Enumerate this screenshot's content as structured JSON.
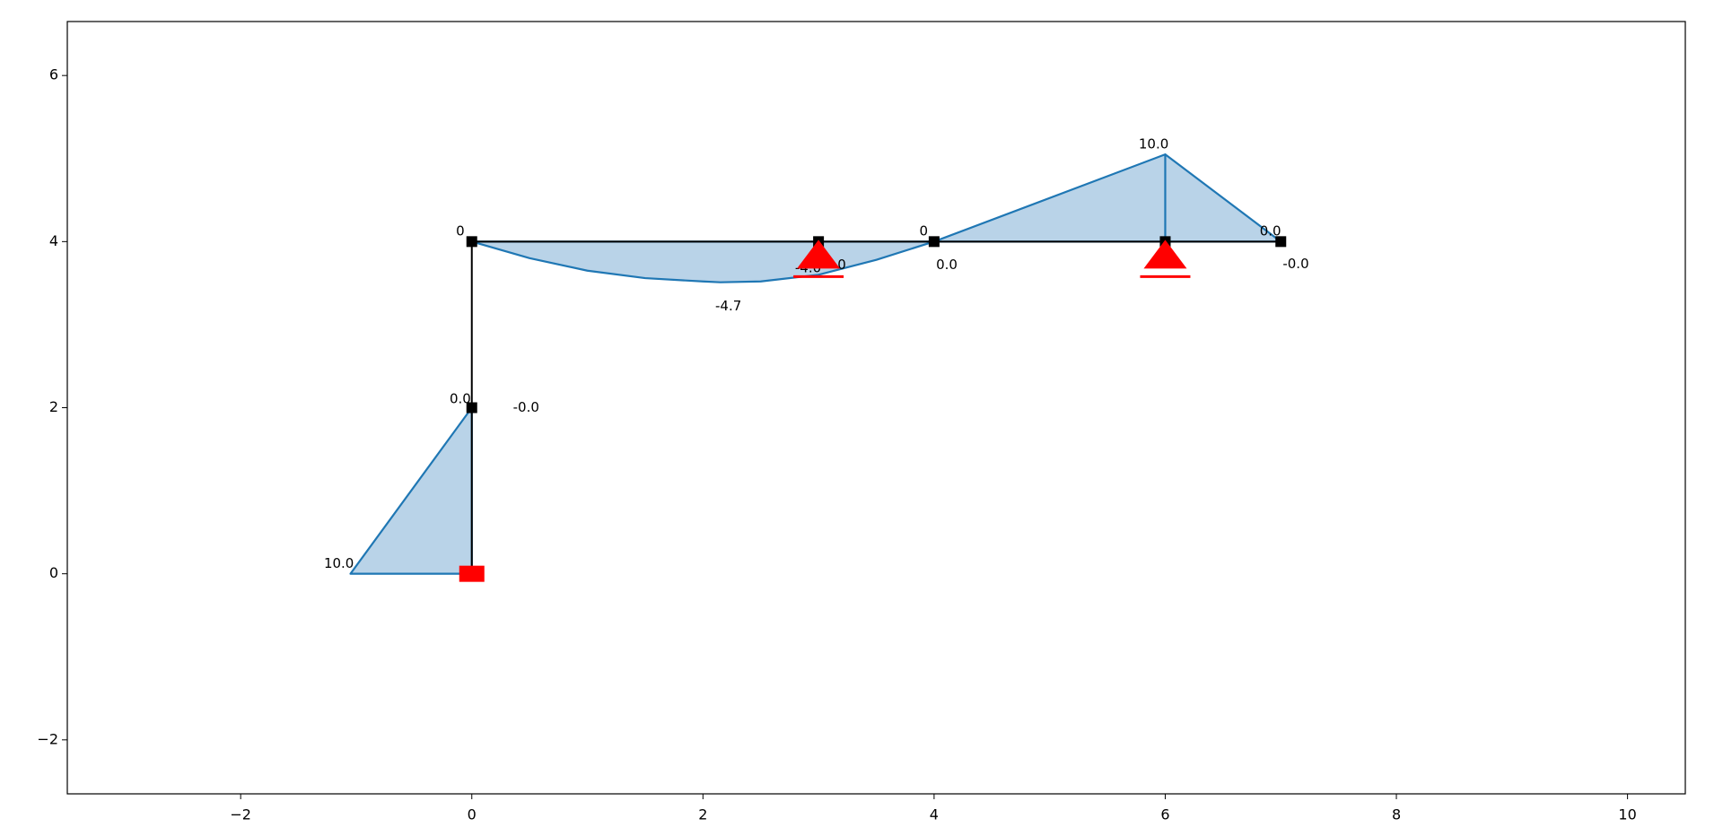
{
  "chart_data": {
    "type": "structure",
    "xlim": [
      -3.5,
      10.5
    ],
    "ylim": [
      -2.65,
      6.65
    ],
    "xticks": [
      {
        "value": -2,
        "label": "−2"
      },
      0,
      2,
      4,
      6,
      8,
      10
    ],
    "yticks": [
      {
        "value": -2,
        "label": "−2"
      },
      0,
      2,
      4,
      6
    ],
    "element_color": "#000000",
    "diagram_color": "#1f77b4",
    "diagram_fill": "#b9d3e8",
    "support_color": "#ff0000",
    "nodes": [
      [
        0,
        0
      ],
      [
        0,
        2
      ],
      [
        0,
        4
      ],
      [
        3,
        4
      ],
      [
        4,
        4
      ],
      [
        6,
        4
      ],
      [
        7,
        4
      ]
    ],
    "elements": [
      [
        0,
        1
      ],
      [
        1,
        2
      ],
      [
        2,
        3
      ],
      [
        3,
        4
      ],
      [
        4,
        5
      ],
      [
        5,
        6
      ]
    ],
    "supports": [
      {
        "kind": "fixed",
        "node": 0
      },
      {
        "kind": "hinged",
        "node": 3
      },
      {
        "kind": "hinged",
        "node": 5
      }
    ],
    "diagram": [
      {
        "x": [
          0,
          -1.05,
          0
        ],
        "y": [
          0,
          0,
          2
        ]
      },
      {
        "x": [
          0,
          0.5,
          1,
          1.5,
          2,
          2.15,
          2.5,
          3,
          3.5,
          4
        ],
        "y": [
          4,
          3.8,
          3.65,
          3.56,
          3.52,
          3.51,
          3.52,
          3.6,
          3.78,
          4
        ]
      },
      {
        "x": [
          4,
          6,
          6,
          6,
          7
        ],
        "y": [
          4,
          5.05,
          4,
          5.05,
          4
        ]
      }
    ],
    "annotations": [
      {
        "text": "10.0",
        "x": -1.15,
        "y": 0.12
      },
      {
        "text": "0.0",
        "x": -0.1,
        "y": 2.1
      },
      {
        "text": "-0.0",
        "x": 0.47,
        "y": 2.0
      },
      {
        "text": "0",
        "x": -0.1,
        "y": 4.12
      },
      {
        "text": "-4.7",
        "x": 2.22,
        "y": 3.22
      },
      {
        "text": "-4.0",
        "x": 2.91,
        "y": 3.68
      },
      {
        "text": "-0",
        "x": 3.18,
        "y": 3.72
      },
      {
        "text": "0",
        "x": 3.91,
        "y": 4.12
      },
      {
        "text": "0.0",
        "x": 4.11,
        "y": 3.72
      },
      {
        "text": "10.0",
        "x": 5.9,
        "y": 5.17
      },
      {
        "text": "0.0",
        "x": 6.91,
        "y": 4.12
      },
      {
        "text": "-0.0",
        "x": 7.13,
        "y": 3.73
      }
    ]
  }
}
